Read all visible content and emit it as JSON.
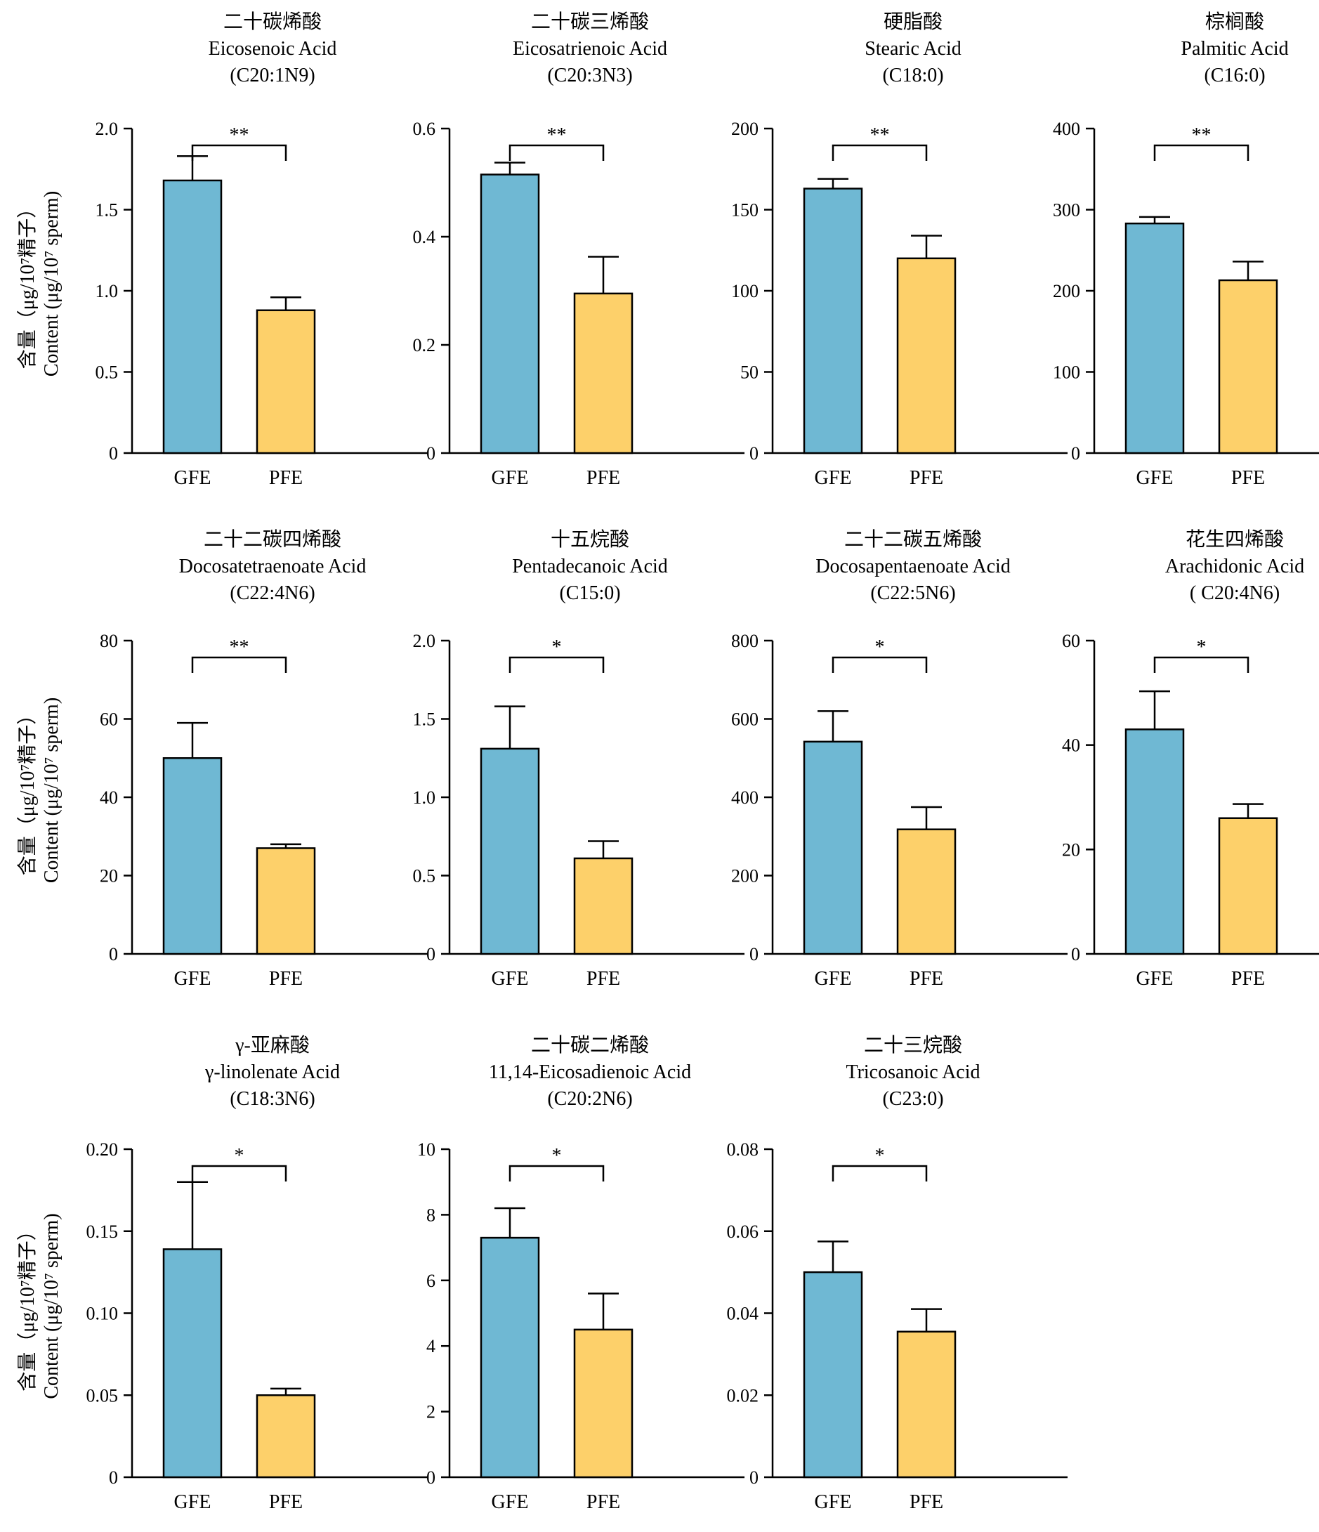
{
  "y_axis_label": {
    "line1": "含量（μg/10⁷精子）",
    "line2": "Content (μg/10⁷ sperm)"
  },
  "colors": {
    "GFE": "#6fb8d3",
    "PFE": "#fdd06a"
  },
  "chart_data": [
    {
      "type": "bar",
      "title_zh": "二十碳烯酸",
      "title_en": "Eicosenoic Acid",
      "formula": "(C20:1N9)",
      "categories": [
        "GFE",
        "PFE"
      ],
      "values": [
        1.68,
        0.88
      ],
      "errors": [
        0.15,
        0.08
      ],
      "ylim": [
        0,
        2.0
      ],
      "ticks": [
        0,
        0.5,
        1.0,
        1.5,
        2.0
      ],
      "tick_labels": [
        "0",
        "0.5",
        "1.0",
        "1.5",
        "2.0"
      ],
      "significance": "**"
    },
    {
      "type": "bar",
      "title_zh": "二十碳三烯酸",
      "title_en": "Eicosatrienoic Acid",
      "formula": "(C20:3N3)",
      "categories": [
        "GFE",
        "PFE"
      ],
      "values": [
        0.515,
        0.295
      ],
      "errors": [
        0.022,
        0.068
      ],
      "ylim": [
        0,
        0.6
      ],
      "ticks": [
        0,
        0.2,
        0.4,
        0.6
      ],
      "tick_labels": [
        "0",
        "0.2",
        "0.4",
        "0.6"
      ],
      "significance": "**"
    },
    {
      "type": "bar",
      "title_zh": "硬脂酸",
      "title_en": "Stearic Acid",
      "formula": "(C18:0)",
      "categories": [
        "GFE",
        "PFE"
      ],
      "values": [
        163,
        120
      ],
      "errors": [
        6,
        14
      ],
      "ylim": [
        0,
        200
      ],
      "ticks": [
        0,
        50,
        100,
        150,
        200
      ],
      "tick_labels": [
        "0",
        "50",
        "100",
        "150",
        "200"
      ],
      "significance": "**"
    },
    {
      "type": "bar",
      "title_zh": "棕榈酸",
      "title_en": "Palmitic Acid",
      "formula": "(C16:0)",
      "categories": [
        "GFE",
        "PFE"
      ],
      "values": [
        283,
        213
      ],
      "errors": [
        8,
        23
      ],
      "ylim": [
        0,
        400
      ],
      "ticks": [
        0,
        100,
        200,
        300,
        400
      ],
      "tick_labels": [
        "0",
        "100",
        "200",
        "300",
        "400"
      ],
      "significance": "**"
    },
    {
      "type": "bar",
      "title_zh": "二十二碳四烯酸",
      "title_en": "Docosatetraenoate Acid",
      "formula": "(C22:4N6)",
      "categories": [
        "GFE",
        "PFE"
      ],
      "values": [
        50,
        27
      ],
      "errors": [
        9,
        1
      ],
      "ylim": [
        0,
        80
      ],
      "ticks": [
        0,
        20,
        40,
        60,
        80
      ],
      "tick_labels": [
        "0",
        "20",
        "40",
        "60",
        "80"
      ],
      "significance": "**"
    },
    {
      "type": "bar",
      "title_zh": "十五烷酸",
      "title_en": "Pentadecanoic Acid",
      "formula": "(C15:0)",
      "categories": [
        "GFE",
        "PFE"
      ],
      "values": [
        1.31,
        0.61
      ],
      "errors": [
        0.27,
        0.11
      ],
      "ylim": [
        0,
        2.0
      ],
      "ticks": [
        0,
        0.5,
        1.0,
        1.5,
        2.0
      ],
      "tick_labels": [
        "0",
        "0.5",
        "1.0",
        "1.5",
        "2.0"
      ],
      "significance": "*"
    },
    {
      "type": "bar",
      "title_zh": "二十二碳五烯酸",
      "title_en": "Docosapentaenoate Acid",
      "formula": "(C22:5N6)",
      "categories": [
        "GFE",
        "PFE"
      ],
      "values": [
        542,
        318
      ],
      "errors": [
        78,
        57
      ],
      "ylim": [
        0,
        800
      ],
      "ticks": [
        0,
        200,
        400,
        600,
        800
      ],
      "tick_labels": [
        "0",
        "200",
        "400",
        "600",
        "800"
      ],
      "significance": "*"
    },
    {
      "type": "bar",
      "title_zh": "花生四烯酸",
      "title_en": "Arachidonic Acid",
      "formula": "( C20:4N6)",
      "categories": [
        "GFE",
        "PFE"
      ],
      "values": [
        43,
        26
      ],
      "errors": [
        7.3,
        2.7
      ],
      "ylim": [
        0,
        60
      ],
      "ticks": [
        0,
        20,
        40,
        60
      ],
      "tick_labels": [
        "0",
        "20",
        "40",
        "60"
      ],
      "significance": "*"
    },
    {
      "type": "bar",
      "title_zh": "γ-亚麻酸",
      "title_en": "γ-linolenate Acid",
      "formula": "(C18:3N6)",
      "categories": [
        "GFE",
        "PFE"
      ],
      "values": [
        0.139,
        0.05
      ],
      "errors": [
        0.041,
        0.004
      ],
      "ylim": [
        0,
        0.2
      ],
      "ticks": [
        0,
        0.05,
        0.1,
        0.15,
        0.2
      ],
      "tick_labels": [
        "0",
        "0.05",
        "0.10",
        "0.15",
        "0.20"
      ],
      "significance": "*"
    },
    {
      "type": "bar",
      "title_zh": "二十碳二烯酸",
      "title_en": "11,14-Eicosadienoic Acid",
      "formula": "(C20:2N6)",
      "categories": [
        "GFE",
        "PFE"
      ],
      "values": [
        7.3,
        4.5
      ],
      "errors": [
        0.9,
        1.1
      ],
      "ylim": [
        0,
        10
      ],
      "ticks": [
        0,
        2,
        4,
        6,
        8,
        10
      ],
      "tick_labels": [
        "0",
        "2",
        "4",
        "6",
        "8",
        "10"
      ],
      "significance": "*"
    },
    {
      "type": "bar",
      "title_zh": "二十三烷酸",
      "title_en": "Tricosanoic Acid",
      "formula": "(C23:0)",
      "categories": [
        "GFE",
        "PFE"
      ],
      "values": [
        0.05,
        0.0355
      ],
      "errors": [
        0.0075,
        0.0055
      ],
      "ylim": [
        0,
        0.08
      ],
      "ticks": [
        0,
        0.02,
        0.04,
        0.06,
        0.08
      ],
      "tick_labels": [
        "0",
        "0.02",
        "0.04",
        "0.06",
        "0.08"
      ],
      "significance": "*"
    }
  ]
}
